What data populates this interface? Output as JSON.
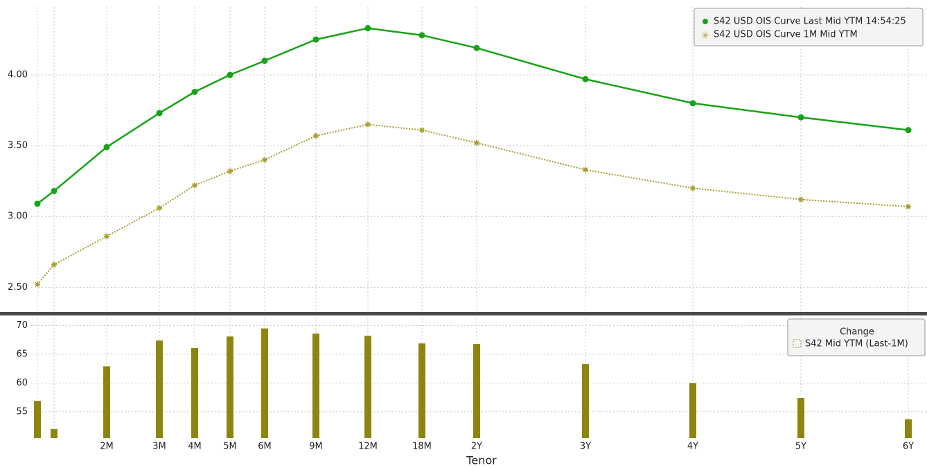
{
  "chart_data": [
    {
      "type": "line",
      "legend_position": "upper right",
      "grid": true,
      "ylim": [
        2.34,
        4.48
      ],
      "yticks": [
        {
          "value": 2.5,
          "label": "2.50"
        },
        {
          "value": 3,
          "label": "3.00"
        },
        {
          "value": 3.5,
          "label": "3.50"
        },
        {
          "value": 4,
          "label": "4.00"
        }
      ],
      "series": [
        {
          "name": "S42 USD OIS Curve Last Mid YTM 14:54:25",
          "color": "#17a317",
          "values": [
            3.09,
            3.18,
            3.49,
            3.73,
            3.88,
            4.0,
            4.1,
            4.25,
            4.33,
            4.28,
            4.19,
            3.97,
            3.8,
            3.7,
            3.61
          ]
        },
        {
          "name": "S42 USD OIS Curve 1M Mid YTM",
          "color": "#a89c2c",
          "values": [
            2.52,
            2.66,
            2.86,
            3.06,
            3.22,
            3.32,
            3.4,
            3.57,
            3.65,
            3.61,
            3.52,
            3.33,
            3.2,
            3.12,
            3.07
          ]
        }
      ]
    },
    {
      "type": "bar",
      "xlabel": "Tenor",
      "legend_title": "Change",
      "legend_position": "upper right",
      "grid": true,
      "categories": [
        null,
        null,
        "2M",
        "3M",
        "4M",
        "5M",
        "6M",
        "9M",
        "12M",
        "18M",
        "2Y",
        "3Y",
        "4Y",
        "5Y",
        "6Y"
      ],
      "ylim": [
        50.4,
        71.4
      ],
      "yticks": [
        55,
        60,
        65,
        70
      ],
      "series": [
        {
          "name": "S42 Mid YTM (Last-1M)",
          "color": "#8c8610",
          "values": [
            56.9,
            52.0,
            62.9,
            67.4,
            66.1,
            68.1,
            69.5,
            68.6,
            68.2,
            66.9,
            66.8,
            63.3,
            60.0,
            57.4,
            53.7
          ]
        }
      ]
    }
  ]
}
